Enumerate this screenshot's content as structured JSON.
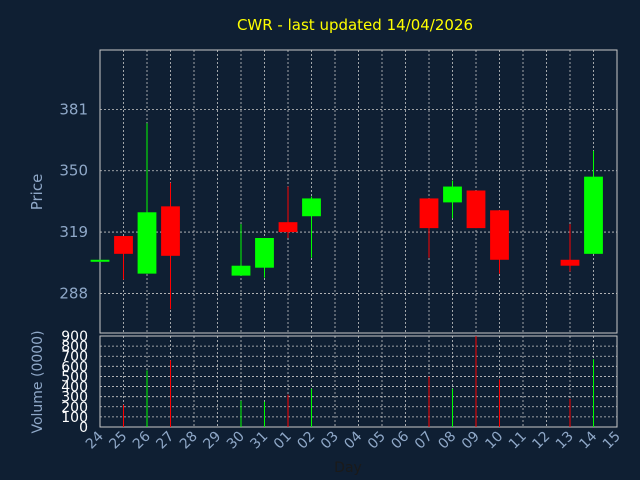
{
  "chart_data": {
    "type": "candlestick",
    "title": "CWR - last updated 14/04/2026",
    "xlabel": "Day",
    "ylabel": "Price",
    "volume_label": "Volume (0000)",
    "x_ticks": [
      "24",
      "25",
      "26",
      "27",
      "28",
      "29",
      "30",
      "31",
      "01",
      "02",
      "03",
      "04",
      "05",
      "06",
      "07",
      "08",
      "09",
      "10",
      "11",
      "12",
      "13",
      "14",
      "15"
    ],
    "price_ticks": [
      288,
      319,
      350,
      381
    ],
    "price_range": [
      268,
      411
    ],
    "volume_ticks": [
      0,
      100,
      200,
      300,
      400,
      500,
      600,
      700,
      800,
      900
    ],
    "volume_range": [
      0,
      900
    ],
    "grid": true,
    "colors": {
      "background": "#0f1f33",
      "axis_text": "#8fa8c8",
      "title": "#ffff00",
      "up": "#00ff00",
      "down": "#ff0000",
      "grid": "#c8c8c8"
    },
    "candles": [
      {
        "day": "24",
        "open": 304,
        "close": 305,
        "high": 305,
        "low": 304,
        "volume": 0
      },
      {
        "day": "25",
        "open": 317,
        "close": 308,
        "high": 317,
        "low": 295,
        "volume": 220
      },
      {
        "day": "26",
        "open": 298,
        "close": 329,
        "high": 374,
        "low": 298,
        "volume": 560
      },
      {
        "day": "27",
        "open": 332,
        "close": 307,
        "high": 344,
        "low": 280,
        "volume": 660
      },
      {
        "day": "30",
        "open": 297,
        "close": 302,
        "high": 323,
        "low": 297,
        "volume": 260
      },
      {
        "day": "31",
        "open": 301,
        "close": 316,
        "high": 316,
        "low": 296,
        "volume": 250
      },
      {
        "day": "01",
        "open": 324,
        "close": 319,
        "high": 342,
        "low": 316,
        "volume": 320
      },
      {
        "day": "02",
        "open": 327,
        "close": 336,
        "high": 337,
        "low": 306,
        "volume": 380
      },
      {
        "day": "07",
        "open": 336,
        "close": 321,
        "high": 336,
        "low": 306,
        "volume": 500
      },
      {
        "day": "08",
        "open": 334,
        "close": 342,
        "high": 345,
        "low": 326,
        "volume": 380
      },
      {
        "day": "09",
        "open": 340,
        "close": 321,
        "high": 340,
        "low": 321,
        "volume": 900
      },
      {
        "day": "10",
        "open": 330,
        "close": 305,
        "high": 330,
        "low": 298,
        "volume": 470
      },
      {
        "day": "13",
        "open": 305,
        "close": 302,
        "high": 323,
        "low": 299,
        "volume": 280
      },
      {
        "day": "14",
        "open": 308,
        "close": 347,
        "high": 360,
        "low": 308,
        "volume": 670
      }
    ]
  }
}
